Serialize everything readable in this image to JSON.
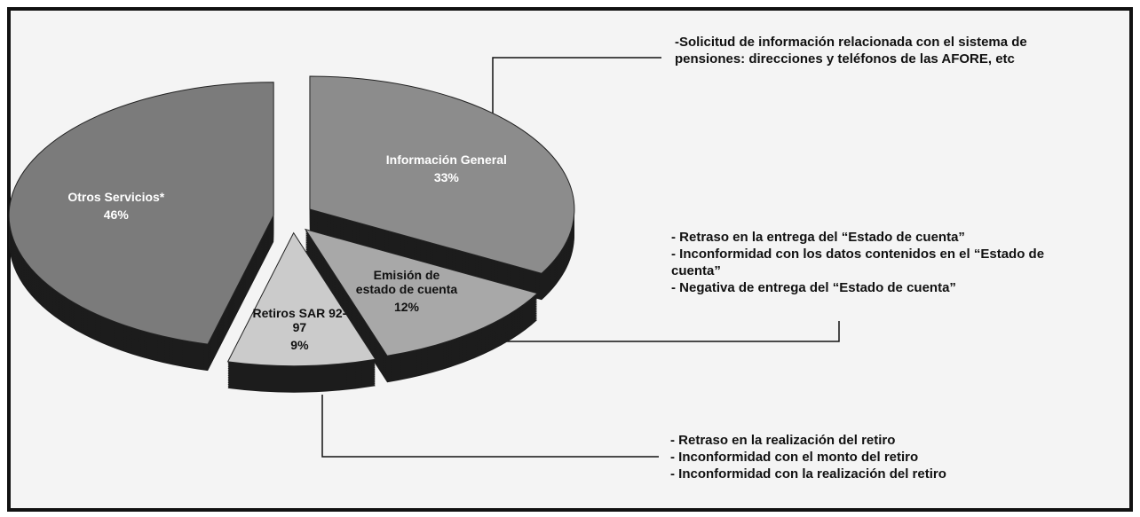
{
  "chart_data": {
    "type": "pie",
    "categories": [
      "Información General",
      "Emisión de estado de cuenta",
      "Retiros SAR 92-97",
      "Otros Servicios*"
    ],
    "values": [
      33,
      12,
      9,
      46
    ],
    "value_labels": [
      "33%",
      "12%",
      "9%",
      "46%"
    ],
    "colors": [
      "#8c8c8c",
      "#a8a8a8",
      "#cbcbcb",
      "#7b7b7b"
    ],
    "annotations": [
      [
        "-Solicitud de información relacionada con el sistema de pensiones: direcciones y teléfonos de las AFORE, etc"
      ],
      [
        "- Retraso en la entrega del “Estado de cuenta”",
        "- Inconformidad con los datos contenidos en el “Estado de cuenta”",
        "- Negativa de entrega del “Estado de cuenta”"
      ],
      [
        "- Retraso en la realización del retiro",
        "- Inconformidad con el monto del retiro",
        "- Inconformidad con la realización del retiro"
      ]
    ]
  }
}
